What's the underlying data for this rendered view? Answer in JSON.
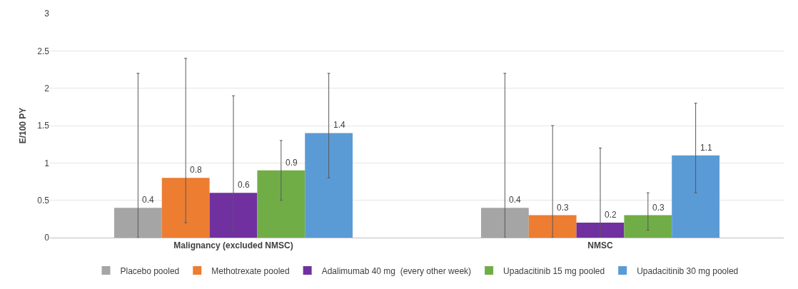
{
  "chart_data": {
    "type": "bar",
    "ylabel": "E/100 PY",
    "categories": [
      "Malignancy (excluded NMSC)",
      "NMSC"
    ],
    "series": [
      {
        "name": "Placebo pooled",
        "color": "#a5a5a5",
        "values": [
          0.4,
          0.4
        ],
        "errors": [
          [
            0,
            2.2
          ],
          [
            0,
            2.2
          ]
        ]
      },
      {
        "name": "Methotrexate pooled",
        "color": "#ed7d31",
        "values": [
          0.8,
          0.3
        ],
        "errors": [
          [
            0.2,
            2.4
          ],
          [
            0,
            1.5
          ]
        ]
      },
      {
        "name": "Adalimumab 40 mg  (every other week)",
        "color": "#7030a0",
        "values": [
          0.6,
          0.2
        ],
        "errors": [
          [
            0.1,
            1.9
          ],
          [
            0,
            1.2
          ]
        ]
      },
      {
        "name": "Upadacitinib 15 mg pooled",
        "color": "#70ad47",
        "values": [
          0.9,
          0.3
        ],
        "errors": [
          [
            0.5,
            1.3
          ],
          [
            0.1,
            0.6
          ]
        ]
      },
      {
        "name": "Upadacitinib 30 mg pooled",
        "color": "#5b9bd5",
        "values": [
          1.4,
          1.1
        ],
        "errors": [
          [
            0.8,
            2.2
          ],
          [
            0.6,
            1.8
          ]
        ]
      }
    ],
    "ylim": [
      0,
      3
    ],
    "yticks": [
      0,
      0.5,
      1,
      1.5,
      2,
      2.5,
      3
    ],
    "grid": "y",
    "legend": "bottom",
    "data_labels": true
  }
}
